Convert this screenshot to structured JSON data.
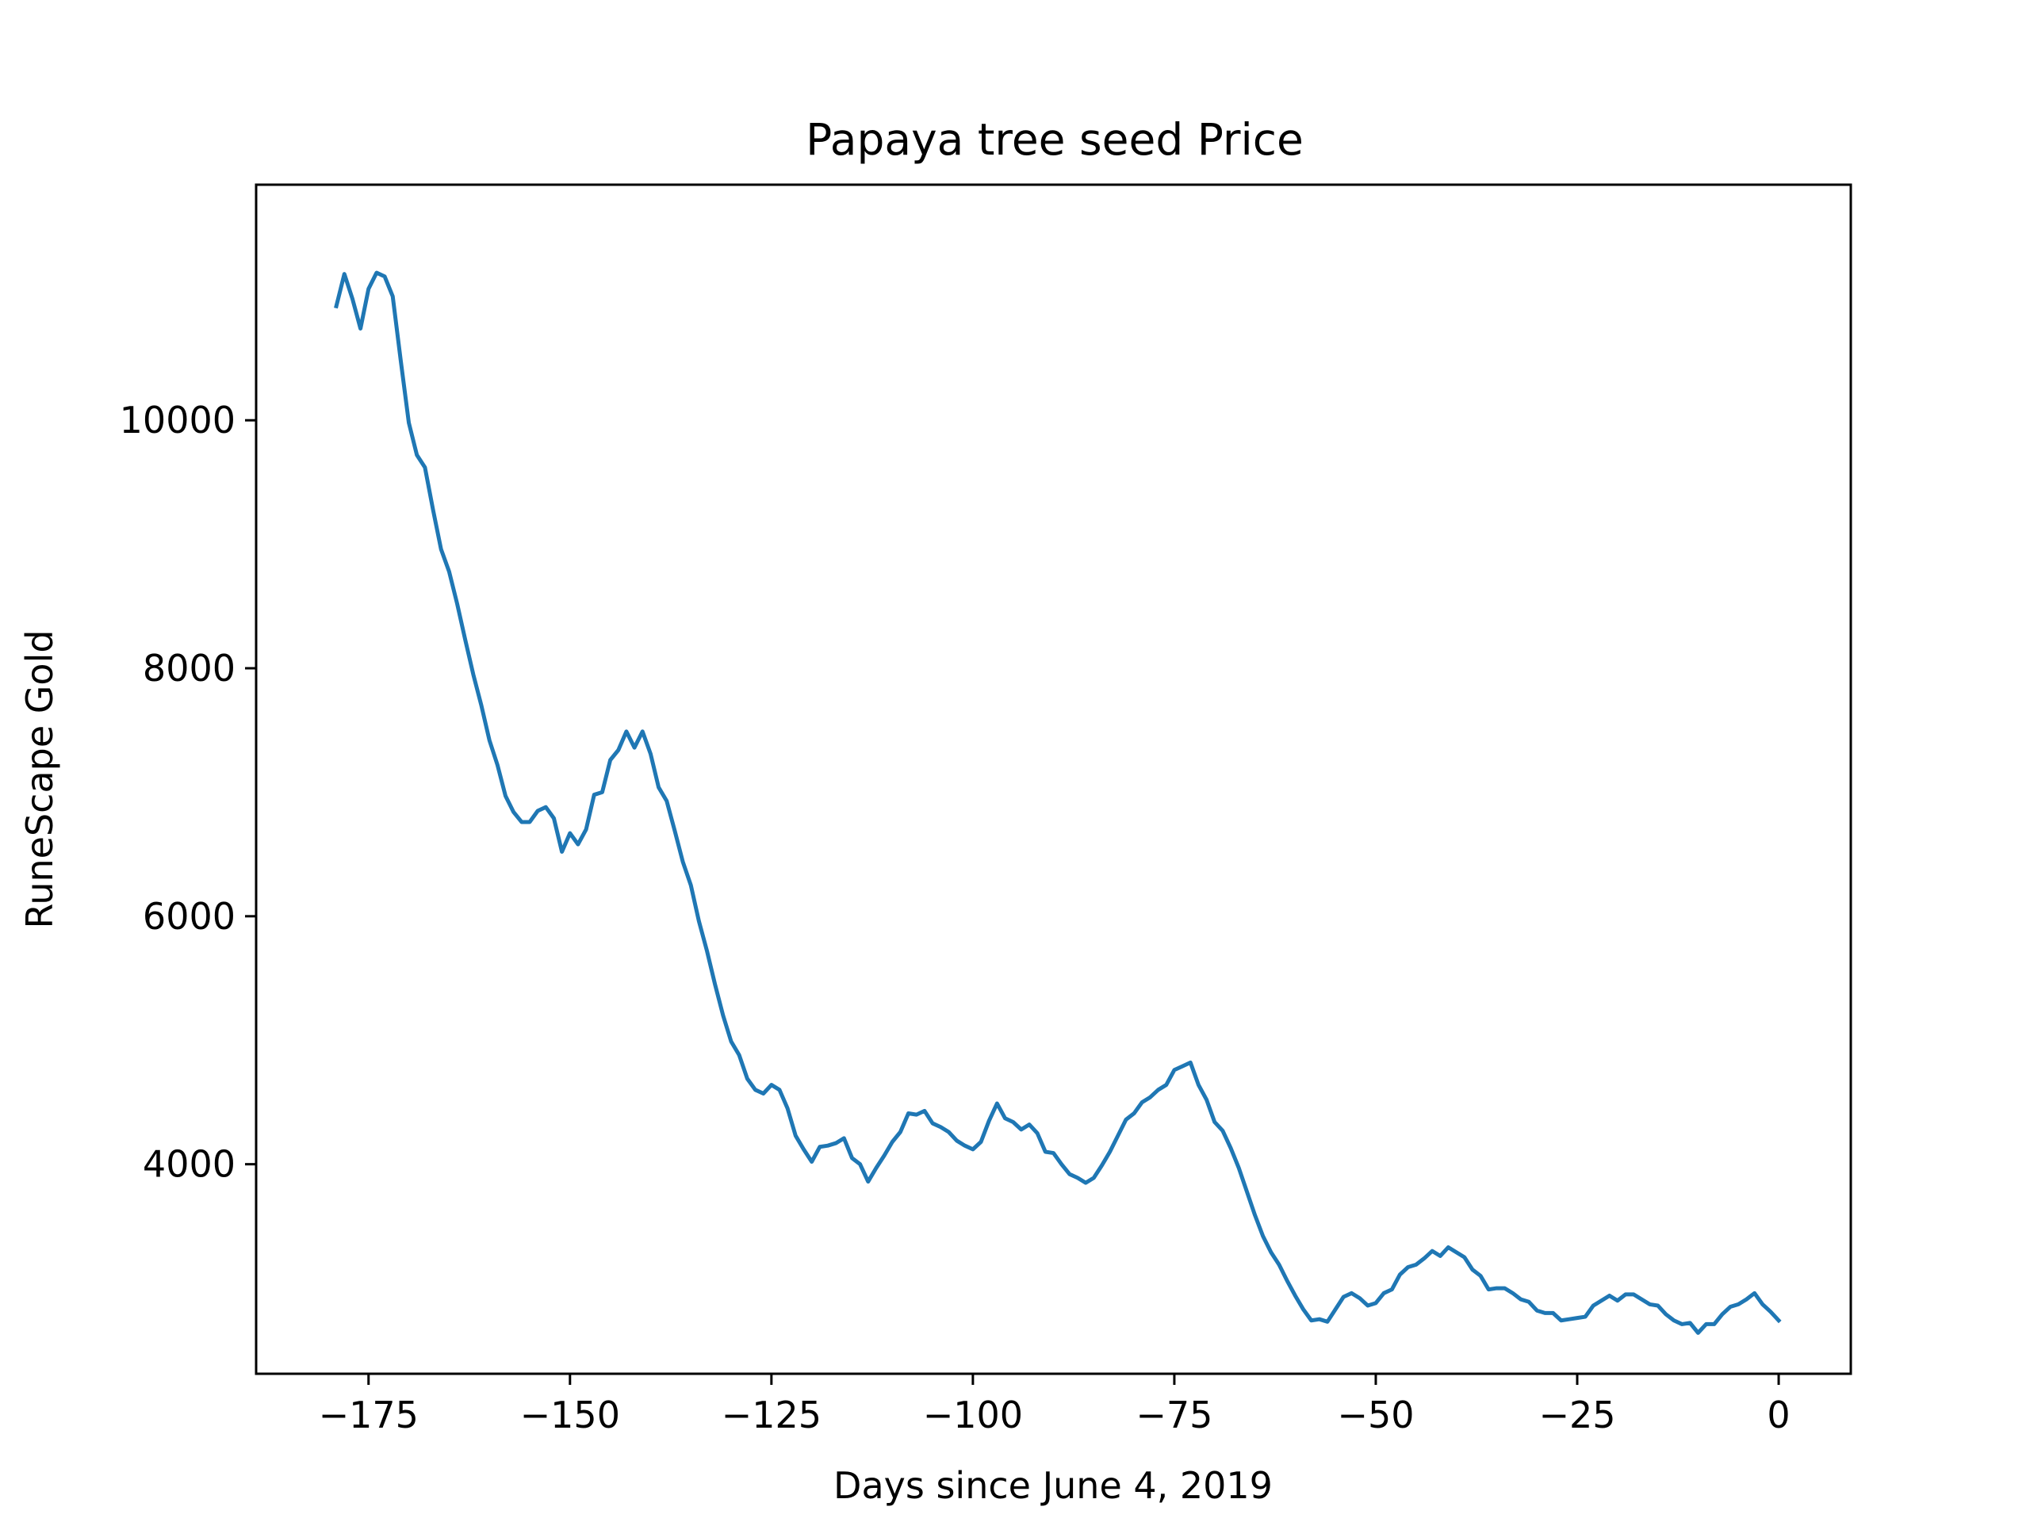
{
  "chart_data": {
    "type": "line",
    "title": "Papaya tree seed Price",
    "xlabel": "Days since June 4, 2019",
    "ylabel": "RuneScape Gold",
    "xlim": [
      -188.95,
      8.95
    ],
    "ylim": [
      2310,
      11900
    ],
    "xticks": [
      -175,
      -150,
      -125,
      -100,
      -75,
      -50,
      -25,
      0
    ],
    "xtick_labels": [
      "−175",
      "−150",
      "−125",
      "−100",
      "−75",
      "−50",
      "−25",
      "0"
    ],
    "yticks": [
      4000,
      6000,
      8000,
      10000
    ],
    "ytick_labels": [
      "4000",
      "6000",
      "8000",
      "10000"
    ],
    "grid": false,
    "series": [
      {
        "color": "#1f77b4",
        "x": [
          -179,
          -178,
          -177,
          -176,
          -175,
          -174,
          -173,
          -172,
          -171,
          -170,
          -169,
          -168,
          -167,
          -166,
          -165,
          -164,
          -163,
          -162,
          -161,
          -160,
          -159,
          -158,
          -157,
          -156,
          -155,
          -154,
          -153,
          -152,
          -151,
          -150,
          -149,
          -148,
          -147,
          -146,
          -145,
          -144,
          -143,
          -142,
          -141,
          -140,
          -139,
          -138,
          -137,
          -136,
          -135,
          -134,
          -133,
          -132,
          -131,
          -130,
          -129,
          -128,
          -127,
          -126,
          -125,
          -124,
          -123,
          -122,
          -121,
          -120,
          -119,
          -118,
          -117,
          -116,
          -115,
          -114,
          -113,
          -112,
          -111,
          -110,
          -109,
          -108,
          -107,
          -106,
          -105,
          -104,
          -103,
          -102,
          -101,
          -100,
          -99,
          -98,
          -97,
          -96,
          -95,
          -94,
          -93,
          -92,
          -91,
          -90,
          -89,
          -88,
          -87,
          -86,
          -85,
          -84,
          -83,
          -82,
          -81,
          -80,
          -79,
          -78,
          -77,
          -76,
          -75,
          -74,
          -73,
          -72,
          -71,
          -70,
          -69,
          -68,
          -67,
          -66,
          -65,
          -64,
          -63,
          -62,
          -61,
          -60,
          -59,
          -58,
          -57,
          -56,
          -55,
          -54,
          -53,
          -52,
          -51,
          -50,
          -49,
          -48,
          -47,
          -46,
          -45,
          -44,
          -43,
          -42,
          -41,
          -40,
          -39,
          -38,
          -37,
          -36,
          -35,
          -34,
          -33,
          -32,
          -31,
          -30,
          -29,
          -28,
          -27,
          -26,
          -25,
          -24,
          -23,
          -22,
          -21,
          -20,
          -19,
          -18,
          -17,
          -16,
          -15,
          -14,
          -13,
          -12,
          -11,
          -10,
          -9,
          -8,
          -7,
          -6,
          -5,
          -4,
          -3,
          -2,
          -1,
          0
        ],
        "y": [
          10920,
          11180,
          10980,
          10740,
          11060,
          11190,
          11160,
          11000,
          10480,
          9980,
          9720,
          9620,
          9280,
          8960,
          8780,
          8520,
          8230,
          7950,
          7700,
          7420,
          7220,
          6970,
          6840,
          6760,
          6760,
          6850,
          6880,
          6790,
          6520,
          6670,
          6580,
          6700,
          6980,
          7000,
          7260,
          7340,
          7490,
          7360,
          7490,
          7310,
          7040,
          6930,
          6690,
          6440,
          6250,
          5960,
          5720,
          5450,
          5200,
          4990,
          4880,
          4690,
          4600,
          4570,
          4640,
          4600,
          4450,
          4230,
          4120,
          4020,
          4140,
          4150,
          4170,
          4210,
          4050,
          4000,
          3860,
          3970,
          4070,
          4180,
          4260,
          4410,
          4400,
          4430,
          4330,
          4300,
          4260,
          4190,
          4150,
          4120,
          4180,
          4350,
          4490,
          4370,
          4340,
          4280,
          4320,
          4250,
          4100,
          4090,
          4000,
          3920,
          3890,
          3850,
          3890,
          3990,
          4100,
          4230,
          4360,
          4410,
          4500,
          4540,
          4600,
          4640,
          4760,
          4790,
          4820,
          4640,
          4520,
          4340,
          4270,
          4130,
          3970,
          3780,
          3590,
          3420,
          3290,
          3190,
          3060,
          2940,
          2830,
          2740,
          2750,
          2730,
          2830,
          2930,
          2960,
          2920,
          2860,
          2880,
          2960,
          2990,
          3110,
          3170,
          3190,
          3240,
          3300,
          3260,
          3330,
          3290,
          3250,
          3150,
          3100,
          2990,
          3000,
          3000,
          2960,
          2910,
          2890,
          2820,
          2800,
          2800,
          2740,
          2750,
          2760,
          2770,
          2860,
          2900,
          2940,
          2900,
          2950,
          2950,
          2910,
          2870,
          2860,
          2790,
          2740,
          2710,
          2720,
          2640,
          2710,
          2710,
          2790,
          2850,
          2870,
          2910,
          2960,
          2870,
          2810,
          2740
        ]
      }
    ]
  }
}
